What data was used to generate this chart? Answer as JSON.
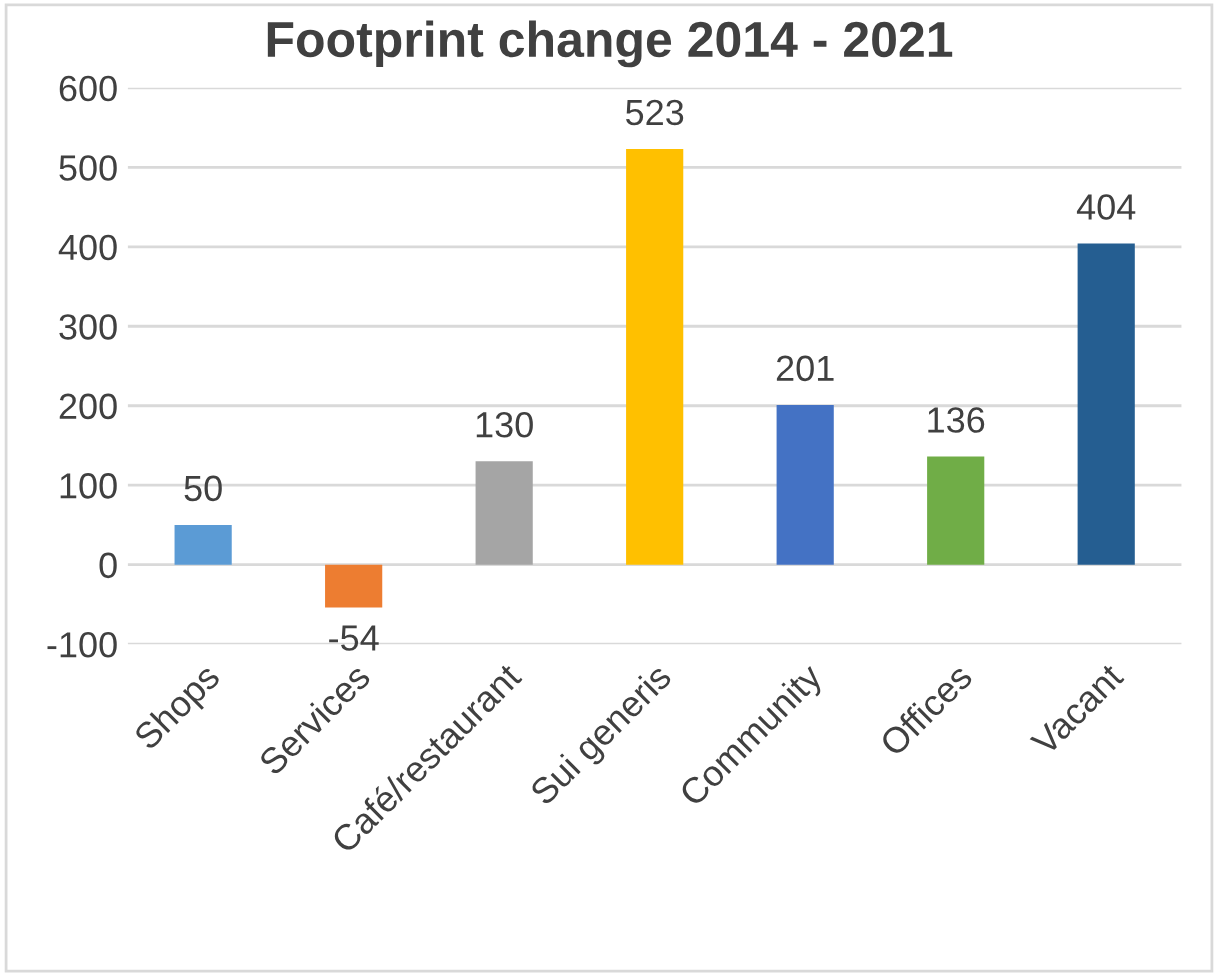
{
  "chart_data": {
    "type": "bar",
    "title": "Footprint change 2014 - 2021",
    "categories": [
      "Shops",
      "Services",
      "Café/restaurant",
      "Sui generis",
      "Community",
      "Offices",
      "Vacant"
    ],
    "values": [
      50,
      -54,
      130,
      523,
      201,
      136,
      404
    ],
    "colors": [
      "#5b9bd5",
      "#ed7d31",
      "#a5a5a5",
      "#ffc000",
      "#4472c4",
      "#70ad47",
      "#255e91"
    ],
    "ylim": [
      -100,
      600
    ],
    "yticks": [
      -100,
      0,
      100,
      200,
      300,
      400,
      500,
      600
    ],
    "grid": "y",
    "data_labels": true
  }
}
